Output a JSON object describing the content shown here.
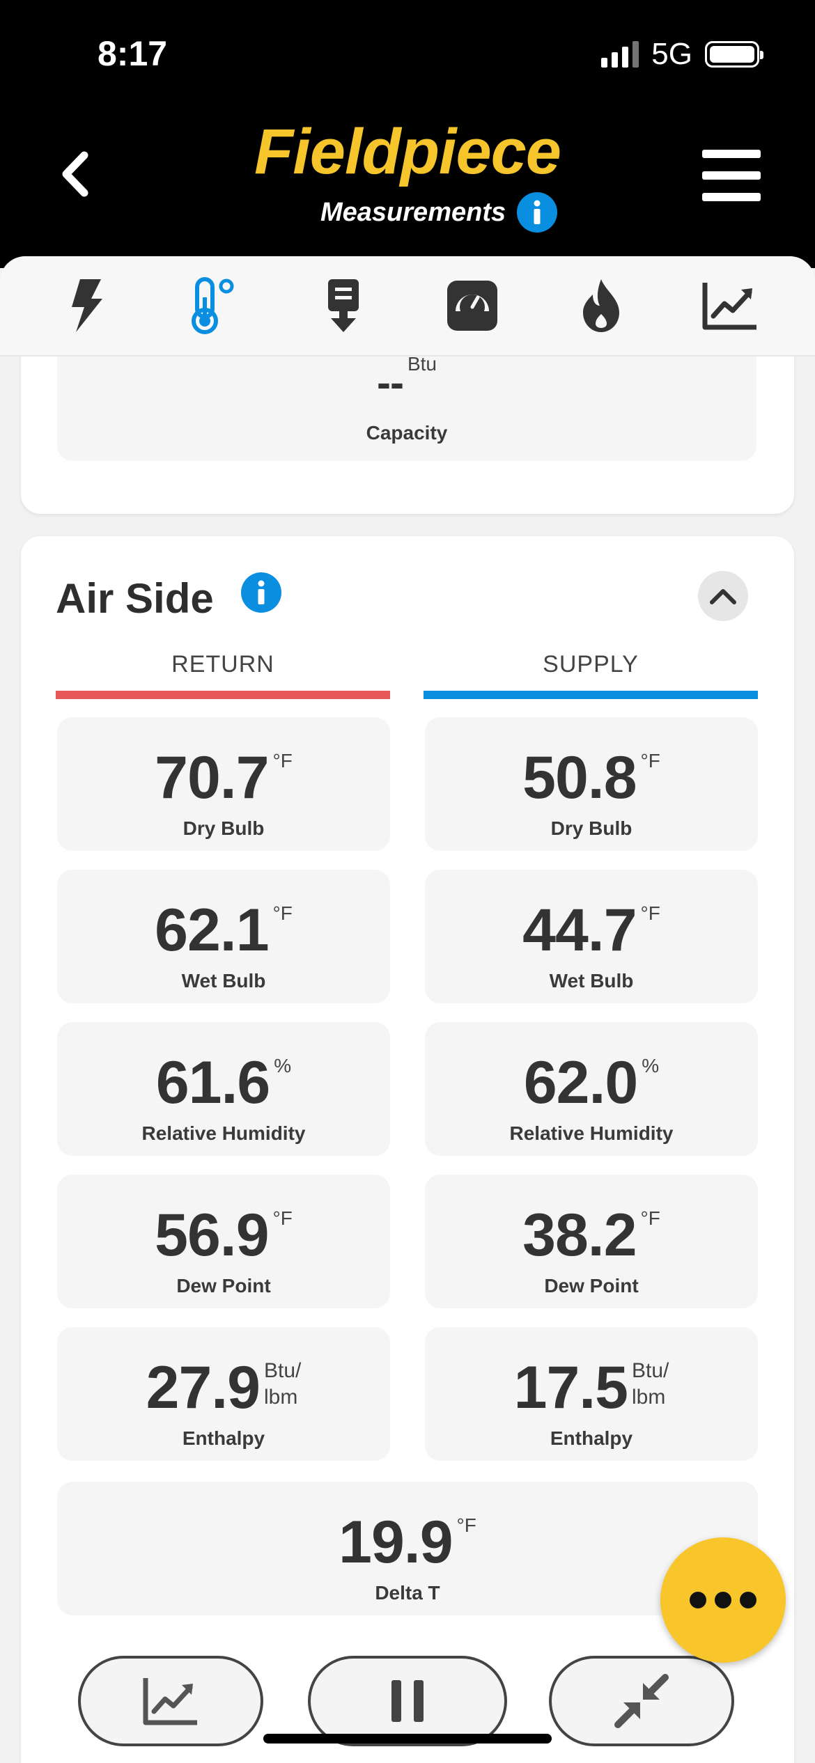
{
  "status_bar": {
    "time": "8:17",
    "network": "5G"
  },
  "header": {
    "brand": "Fieldpiece",
    "subtitle": "Measurements"
  },
  "icons": {
    "back": "chevron-left-icon",
    "menu": "hamburger-icon",
    "info": "info-icon",
    "tabs": [
      "lightning-icon",
      "thermometer-icon",
      "probe-icon",
      "gauge-icon",
      "flame-icon",
      "chart-icon"
    ]
  },
  "colors": {
    "brand_yellow": "#f6c52c",
    "accent_blue": "#0a8ee0",
    "return_red": "#e85a5a",
    "supply_blue": "#0a8ee0",
    "fab_yellow": "#f8c52b"
  },
  "capacity": {
    "value": "--",
    "unit": "Btu",
    "label": "Capacity"
  },
  "air_side": {
    "title": "Air Side",
    "return": {
      "heading": "RETURN",
      "items": [
        {
          "value": "70.7",
          "unit": "°F",
          "label": "Dry Bulb"
        },
        {
          "value": "62.1",
          "unit": "°F",
          "label": "Wet Bulb"
        },
        {
          "value": "61.6",
          "unit": "%",
          "label": "Relative Humidity"
        },
        {
          "value": "56.9",
          "unit": "°F",
          "label": "Dew Point"
        },
        {
          "value": "27.9",
          "unit_line1": "Btu/",
          "unit_line2": "lbm",
          "label": "Enthalpy"
        }
      ]
    },
    "supply": {
      "heading": "SUPPLY",
      "items": [
        {
          "value": "50.8",
          "unit": "°F",
          "label": "Dry Bulb"
        },
        {
          "value": "44.7",
          "unit": "°F",
          "label": "Wet Bulb"
        },
        {
          "value": "62.0",
          "unit": "%",
          "label": "Relative Humidity"
        },
        {
          "value": "38.2",
          "unit": "°F",
          "label": "Dew Point"
        },
        {
          "value": "17.5",
          "unit_line1": "Btu/",
          "unit_line2": "lbm",
          "label": "Enthalpy"
        }
      ]
    },
    "delta_t": {
      "value": "19.9",
      "unit": "°F",
      "label": "Delta T"
    }
  }
}
